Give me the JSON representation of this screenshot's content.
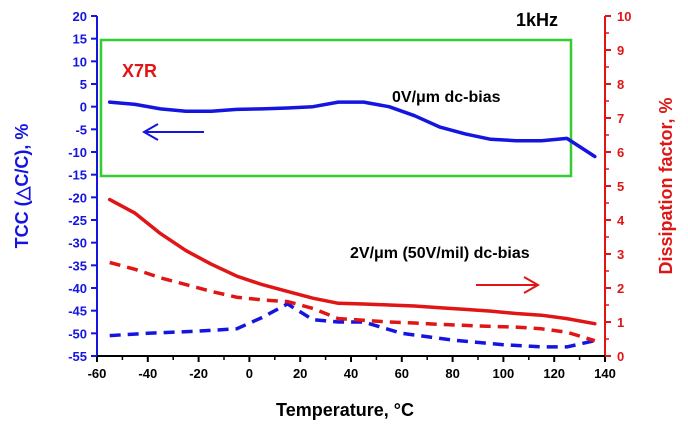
{
  "chart_data": {
    "type": "line",
    "title": "1kHz",
    "xlabel": "Temperature, °C",
    "ylabel_left": "TCC (△C/C), %",
    "ylabel_right": "Dissipation factor, %",
    "xlim": [
      -60,
      140
    ],
    "ylim_left": [
      -55,
      20
    ],
    "ylim_right": [
      0,
      10
    ],
    "x_ticks": [
      "-60",
      "-40",
      "-20",
      "0",
      "20",
      "40",
      "60",
      "80",
      "100",
      "120",
      "140"
    ],
    "y_left_ticks": [
      "20",
      "15",
      "10",
      "5",
      "0",
      "-5",
      "-10",
      "-15",
      "-20",
      "-25",
      "-30",
      "-35",
      "-40",
      "-45",
      "-50",
      "-55"
    ],
    "y_right_ticks": [
      "10",
      "9",
      "8",
      "7",
      "6",
      "5",
      "4",
      "3",
      "2",
      "1",
      "0"
    ],
    "grid": false,
    "annotations": {
      "material": "X7R",
      "curve_0v": "0V/μm dc-bias",
      "curve_2v": "2V/μm (50V/mil) dc-bias"
    },
    "colors": {
      "tcc": "#1515e0",
      "df": "#e01515",
      "highlight_box": "#33cc33"
    },
    "series": [
      {
        "axis": "left",
        "color": "#1515e0",
        "dash": "solid",
        "x": [
          -55,
          -45,
          -35,
          -25,
          -15,
          -5,
          5,
          15,
          25,
          35,
          45,
          55,
          65,
          75,
          85,
          95,
          105,
          115,
          125,
          136
        ],
        "y": [
          1,
          0.5,
          -0.5,
          -1,
          -1,
          -0.6,
          -0.5,
          -0.3,
          0,
          1,
          1,
          0,
          -2,
          -4.5,
          -6,
          -7.2,
          -7.5,
          -7.5,
          -7,
          -11
        ]
      },
      {
        "axis": "left",
        "color": "#1515e0",
        "dash": "dashed",
        "x": [
          -55,
          -40,
          -20,
          -5,
          5,
          15,
          25,
          35,
          45,
          60,
          80,
          100,
          115,
          125,
          137
        ],
        "y": [
          -50.5,
          -50,
          -49.5,
          -49,
          -46.5,
          -43.5,
          -47,
          -47.5,
          -47.5,
          -50,
          -51.5,
          -52.5,
          -53,
          -53,
          -51.5
        ]
      },
      {
        "axis": "right",
        "color": "#e01515",
        "dash": "solid",
        "x": [
          -55,
          -45,
          -35,
          -25,
          -15,
          -5,
          5,
          15,
          25,
          35,
          45,
          55,
          65,
          75,
          85,
          95,
          105,
          115,
          125,
          136
        ],
        "y": [
          4.6,
          4.2,
          3.6,
          3.1,
          2.7,
          2.35,
          2.1,
          1.9,
          1.7,
          1.55,
          1.53,
          1.5,
          1.47,
          1.42,
          1.37,
          1.32,
          1.25,
          1.2,
          1.1,
          0.95
        ]
      },
      {
        "axis": "right",
        "color": "#e01515",
        "dash": "dashed",
        "x": [
          -55,
          -45,
          -35,
          -25,
          -15,
          -5,
          5,
          15,
          25,
          35,
          45,
          55,
          65,
          75,
          85,
          95,
          105,
          115,
          125,
          136
        ],
        "y": [
          2.75,
          2.55,
          2.3,
          2.1,
          1.9,
          1.73,
          1.65,
          1.6,
          1.4,
          1.1,
          1.05,
          1.0,
          0.97,
          0.93,
          0.9,
          0.87,
          0.85,
          0.8,
          0.7,
          0.45
        ]
      }
    ]
  }
}
